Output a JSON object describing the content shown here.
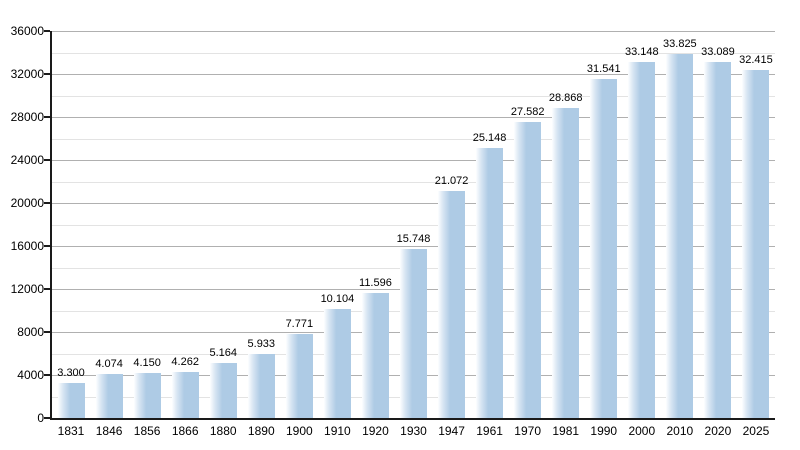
{
  "chart_data": {
    "type": "bar",
    "title": "",
    "xlabel": "",
    "ylabel": "",
    "categories": [
      "1831",
      "1846",
      "1856",
      "1866",
      "1880",
      "1890",
      "1900",
      "1910",
      "1920",
      "1930",
      "1947",
      "1961",
      "1970",
      "1981",
      "1990",
      "2000",
      "2010",
      "2020",
      "2025"
    ],
    "values": [
      3300,
      4074,
      4150,
      4262,
      5164,
      5933,
      7771,
      10104,
      11596,
      15748,
      21072,
      25148,
      27582,
      28868,
      31541,
      33148,
      33825,
      33089,
      32415
    ],
    "value_labels": [
      "3.300",
      "4.074",
      "4.150",
      "4.262",
      "5.164",
      "5.933",
      "7.771",
      "10.104",
      "11.596",
      "15.748",
      "21.072",
      "25.148",
      "27.582",
      "28.868",
      "31.541",
      "33.148",
      "33.825",
      "33.089",
      "32.415"
    ],
    "ylim": [
      0,
      36000
    ],
    "y_major_step": 4000,
    "y_minor_step": 2000,
    "y_tick_labels": [
      "0",
      "4000",
      "8000",
      "12000",
      "16000",
      "20000",
      "24000",
      "28000",
      "32000",
      "36000"
    ],
    "grid": "horizontal major and minor lines",
    "legend_position": "none",
    "colors": {
      "bar": "#aecbe5",
      "bar_gradient_left": "#fdfeff",
      "major_grid": "#b0b0b0",
      "minor_grid": "#e3e3e3",
      "axis": "#1a1a1a",
      "text": "#000000"
    }
  }
}
